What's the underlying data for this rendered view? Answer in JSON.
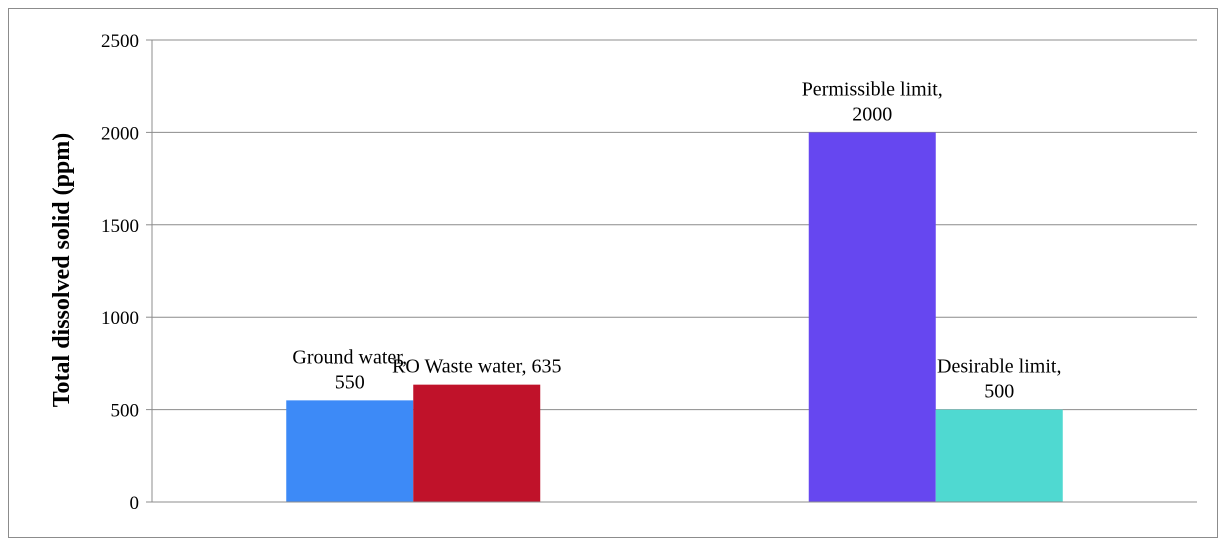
{
  "chart_data": {
    "type": "bar",
    "title": "",
    "xlabel": "",
    "ylabel": "Total dissolved solid (ppm)",
    "ylim": [
      0,
      2500
    ],
    "yticks": [
      0,
      500,
      1000,
      1500,
      2000,
      2500
    ],
    "grid": true,
    "legend": "none",
    "groups": [
      {
        "bars": [
          {
            "category": "Ground water",
            "value": 550,
            "label_lines": [
              "Ground water,",
              "550"
            ],
            "color": "#3d8af7"
          },
          {
            "category": "RO Waste water",
            "value": 635,
            "label_lines": [
              "RO Waste water, 635"
            ],
            "color": "#c0122a"
          }
        ]
      },
      {
        "bars": [
          {
            "category": "Permissible limit",
            "value": 2000,
            "label_lines": [
              "Permissible limit,",
              "2000"
            ],
            "color": "#6647f0"
          },
          {
            "category": "Desirable limit",
            "value": 500,
            "label_lines": [
              "Desirable limit,",
              "500"
            ],
            "color": "#4fd9d1"
          }
        ]
      }
    ]
  }
}
